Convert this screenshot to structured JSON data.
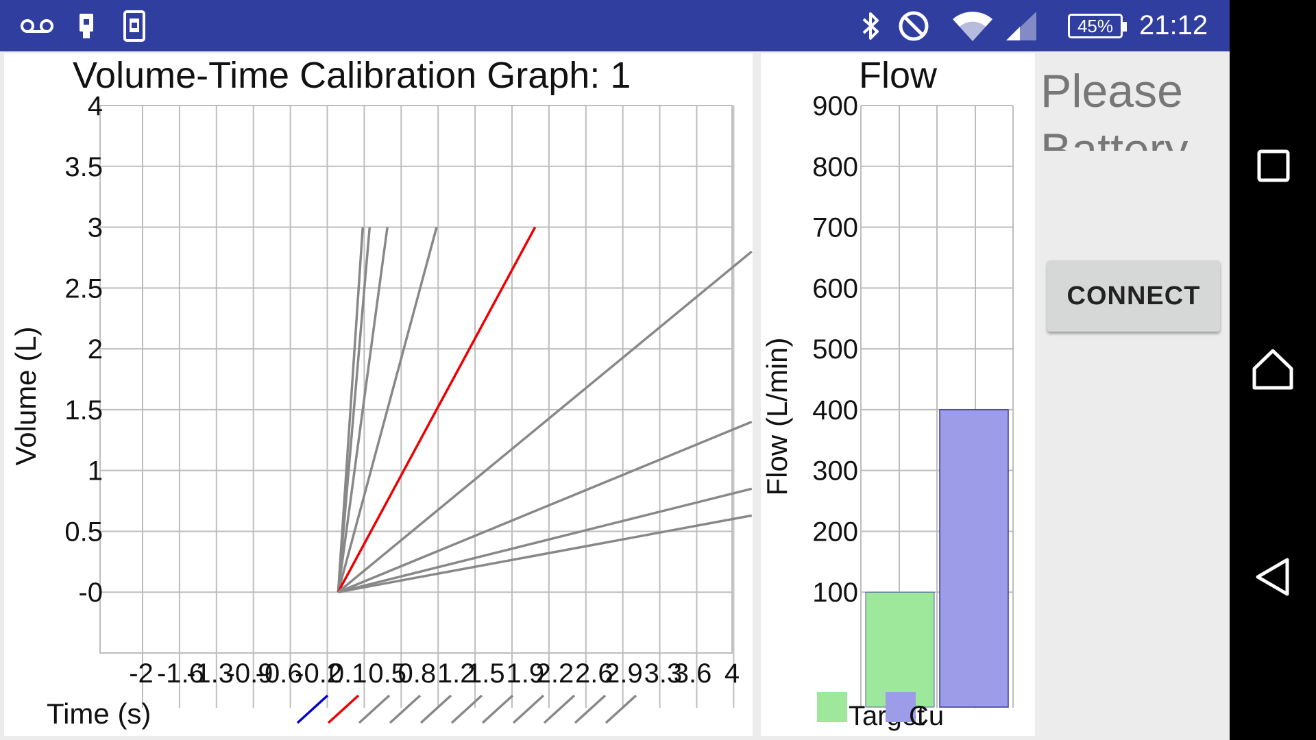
{
  "status_bar": {
    "time": "21:12",
    "battery": "45%",
    "left_icons": [
      "voicemail-icon",
      "sim-icon",
      "phone-screen-icon"
    ],
    "right_icons": [
      "bluetooth-icon",
      "do-not-disturb-icon",
      "wifi-icon",
      "cell-signal-icon"
    ],
    "background": "#303f9f"
  },
  "side_panel": {
    "text_line1": "Please",
    "text_line2": "Battery",
    "connect_label": "CONNECT"
  },
  "nav_bar": {
    "icons": [
      "recents-icon",
      "home-icon",
      "back-icon"
    ]
  },
  "chart_data": [
    {
      "type": "line",
      "title": "Volume-Time Calibration Graph: 1",
      "xlabel": "Time (s)",
      "ylabel": "Volume (L)",
      "xlim": [
        -2,
        4
      ],
      "ylim": [
        -0.5,
        4
      ],
      "y_ticks": [
        "-0",
        "0.5",
        "1",
        "1.5",
        "2",
        "2.5",
        "3",
        "3.5",
        "4"
      ],
      "y_tick_values": [
        0,
        0.5,
        1,
        1.5,
        2,
        2.5,
        3,
        3.5,
        4
      ],
      "x_ticks": [
        "-2",
        "-1.6",
        "-1.3",
        "-0.9",
        "-0.6",
        "-0.2",
        "0.1",
        "0.5",
        "0.8",
        "1.2",
        "1.5",
        "1.9",
        "2.2",
        "2.6",
        "2.9",
        "3.3",
        "3.6",
        "4"
      ],
      "x_tick_values": [
        -2,
        -1.6,
        -1.3,
        -0.9,
        -0.6,
        -0.2,
        0.1,
        0.5,
        0.8,
        1.2,
        1.5,
        1.9,
        2.2,
        2.6,
        2.9,
        3.3,
        3.6,
        4
      ],
      "grid": true,
      "legend": {
        "position": "bottom",
        "colors": [
          "#0000cc",
          "#ee0000",
          "#888888",
          "#888888",
          "#888888",
          "#888888",
          "#888888",
          "#888888",
          "#888888",
          "#888888",
          "#888888"
        ]
      },
      "series": [
        {
          "color": "#888888",
          "x": [
            0,
            0.25
          ],
          "y": [
            0,
            3
          ]
        },
        {
          "color": "#888888",
          "x": [
            0,
            0.32
          ],
          "y": [
            0,
            3
          ]
        },
        {
          "color": "#888888",
          "x": [
            0,
            0.5
          ],
          "y": [
            0,
            3
          ]
        },
        {
          "color": "#888888",
          "x": [
            0,
            1.0
          ],
          "y": [
            0,
            3
          ]
        },
        {
          "color": "#ee0000",
          "x": [
            0,
            2.0
          ],
          "y": [
            0,
            3
          ]
        },
        {
          "color": "#888888",
          "x": [
            0,
            4.2
          ],
          "y": [
            0,
            2.8
          ]
        },
        {
          "color": "#888888",
          "x": [
            0,
            4.2
          ],
          "y": [
            0,
            1.4
          ]
        },
        {
          "color": "#888888",
          "x": [
            0,
            4.2
          ],
          "y": [
            0,
            0.85
          ]
        },
        {
          "color": "#888888",
          "x": [
            0,
            4.2
          ],
          "y": [
            0,
            0.63
          ]
        }
      ]
    },
    {
      "type": "bar",
      "title": "Flow",
      "ylabel": "Flow (L/min)",
      "ylim": [
        0,
        900
      ],
      "y_ticks": [
        "100",
        "200",
        "300",
        "400",
        "500",
        "600",
        "700",
        "800",
        "900"
      ],
      "y_tick_values": [
        100,
        200,
        300,
        400,
        500,
        600,
        700,
        800,
        900
      ],
      "grid": true,
      "legend": {
        "position": "bottom-left",
        "entries": [
          "Target",
          "Cu"
        ]
      },
      "series": [
        {
          "name": "Target",
          "value": 100,
          "color": "#9de89a"
        },
        {
          "name": "Cu",
          "value": 400,
          "color": "#9c9ce8"
        }
      ]
    }
  ]
}
